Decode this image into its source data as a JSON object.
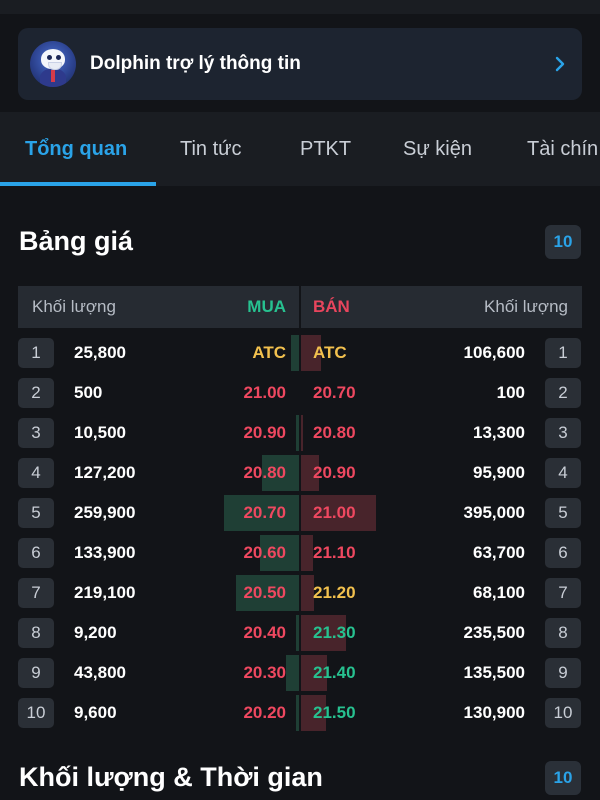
{
  "assistant": {
    "title": "Dolphin trợ lý thông tin"
  },
  "tabs": [
    {
      "label": "Tổng quan",
      "active": true
    },
    {
      "label": "Tin tức",
      "active": false
    },
    {
      "label": "PTKT",
      "active": false
    },
    {
      "label": "Sự kiện",
      "active": false
    },
    {
      "label": "Tài chín",
      "active": false
    }
  ],
  "price_board": {
    "title": "Bảng giá",
    "badge": "10",
    "headers": {
      "buy_volume": "Khối lượng",
      "buy": "MUA",
      "sell": "BÁN",
      "sell_volume": "Khối lượng"
    },
    "rows": [
      {
        "idx": "1",
        "buy_qty": "25,800",
        "buy_price": "ATC",
        "sell_price": "ATC",
        "sell_qty": "106,600",
        "buy_price_color": "#f2c14e",
        "sell_price_color": "#f2c14e",
        "buy_bar": 0.1,
        "sell_bar": 0.27
      },
      {
        "idx": "2",
        "buy_qty": "500",
        "buy_price": "21.00",
        "sell_price": "20.70",
        "sell_qty": "100",
        "buy_price_color": "#ef4860",
        "sell_price_color": "#ef4860",
        "buy_bar": 0.0,
        "sell_bar": 0.0
      },
      {
        "idx": "3",
        "buy_qty": "10,500",
        "buy_price": "20.90",
        "sell_price": "20.80",
        "sell_qty": "13,300",
        "buy_price_color": "#ef4860",
        "sell_price_color": "#ef4860",
        "buy_bar": 0.04,
        "sell_bar": 0.03
      },
      {
        "idx": "4",
        "buy_qty": "127,200",
        "buy_price": "20.80",
        "sell_price": "20.90",
        "sell_qty": "95,900",
        "buy_price_color": "#ef4860",
        "sell_price_color": "#ef4860",
        "buy_bar": 0.49,
        "sell_bar": 0.24
      },
      {
        "idx": "5",
        "buy_qty": "259,900",
        "buy_price": "20.70",
        "sell_price": "21.00",
        "sell_qty": "395,000",
        "buy_price_color": "#ef4860",
        "sell_price_color": "#ef4860",
        "buy_bar": 1.0,
        "sell_bar": 1.0
      },
      {
        "idx": "6",
        "buy_qty": "133,900",
        "buy_price": "20.60",
        "sell_price": "21.10",
        "sell_qty": "63,700",
        "buy_price_color": "#ef4860",
        "sell_price_color": "#ef4860",
        "buy_bar": 0.52,
        "sell_bar": 0.16
      },
      {
        "idx": "7",
        "buy_qty": "219,100",
        "buy_price": "20.50",
        "sell_price": "21.20",
        "sell_qty": "68,100",
        "buy_price_color": "#ef4860",
        "sell_price_color": "#f2c14e",
        "buy_bar": 0.84,
        "sell_bar": 0.17
      },
      {
        "idx": "8",
        "buy_qty": "9,200",
        "buy_price": "20.40",
        "sell_price": "21.30",
        "sell_qty": "235,500",
        "buy_price_color": "#ef4860",
        "sell_price_color": "#27c290",
        "buy_bar": 0.04,
        "sell_bar": 0.6
      },
      {
        "idx": "9",
        "buy_qty": "43,800",
        "buy_price": "20.30",
        "sell_price": "21.40",
        "sell_qty": "135,500",
        "buy_price_color": "#ef4860",
        "sell_price_color": "#27c290",
        "buy_bar": 0.17,
        "sell_bar": 0.34
      },
      {
        "idx": "10",
        "buy_qty": "9,600",
        "buy_price": "20.20",
        "sell_price": "21.50",
        "sell_qty": "130,900",
        "buy_price_color": "#ef4860",
        "sell_price_color": "#27c290",
        "buy_bar": 0.04,
        "sell_bar": 0.33
      }
    ]
  },
  "volume_time": {
    "title": "Khối lượng & Thời gian",
    "badge": "10"
  },
  "colors": {
    "accent": "#2aa3e8",
    "buy": "#27c290",
    "sell": "#e8455d",
    "ref": "#f2c14e"
  }
}
